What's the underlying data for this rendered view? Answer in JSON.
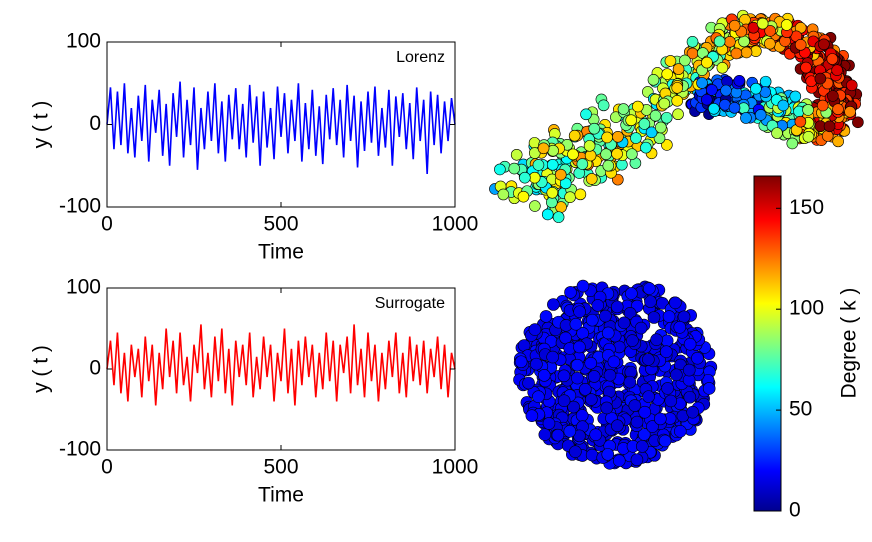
{
  "chart_data": [
    {
      "type": "line",
      "xlabel": "Time",
      "ylabel": "y ( t )",
      "x": [
        0,
        10,
        20,
        30,
        40,
        50,
        60,
        70,
        80,
        90,
        100,
        110,
        120,
        130,
        140,
        150,
        160,
        170,
        180,
        190,
        200,
        210,
        220,
        230,
        240,
        250,
        260,
        270,
        280,
        290,
        300,
        310,
        320,
        330,
        340,
        350,
        360,
        370,
        380,
        390,
        400,
        410,
        420,
        430,
        440,
        450,
        460,
        470,
        480,
        490,
        500,
        510,
        520,
        530,
        540,
        550,
        560,
        570,
        580,
        590,
        600,
        610,
        620,
        630,
        640,
        650,
        660,
        670,
        680,
        690,
        700,
        710,
        720,
        730,
        740,
        750,
        760,
        770,
        780,
        790,
        800,
        810,
        820,
        830,
        840,
        850,
        860,
        870,
        880,
        890,
        900,
        910,
        920,
        930,
        940,
        950,
        960,
        970,
        980,
        990,
        1000
      ],
      "series": [
        {
          "name": "Lorenz",
          "color": "#0000ff",
          "values": [
            0,
            45,
            -30,
            40,
            -25,
            50,
            -35,
            20,
            -40,
            35,
            -20,
            48,
            -45,
            30,
            -10,
            42,
            -38,
            25,
            -50,
            38,
            -15,
            52,
            -40,
            30,
            -25,
            45,
            -55,
            20,
            -30,
            40,
            -20,
            50,
            -35,
            28,
            -45,
            36,
            -18,
            44,
            -30,
            25,
            -40,
            48,
            -22,
            34,
            -50,
            40,
            -28,
            20,
            -42,
            46,
            -15,
            38,
            -35,
            30,
            -20,
            50,
            -45,
            26,
            -30,
            42,
            -38,
            22,
            -48,
            36,
            -18,
            44,
            -25,
            30,
            -40,
            48,
            -20,
            35,
            -52,
            28,
            -32,
            40,
            -22,
            46,
            -38,
            20,
            -28,
            42,
            -50,
            34,
            -15,
            38,
            -30,
            26,
            -42,
            45,
            -20,
            30,
            -60,
            40,
            -25,
            36,
            -35,
            28,
            -20,
            32,
            0
          ]
        }
      ],
      "xlim": [
        0,
        1000
      ],
      "xticks": [
        0,
        500,
        1000
      ],
      "ylim": [
        -100,
        100
      ],
      "yticks": [
        100,
        0,
        -100
      ]
    },
    {
      "type": "line",
      "xlabel": "Time",
      "ylabel": "y ( t )",
      "x": [
        0,
        10,
        20,
        30,
        40,
        50,
        60,
        70,
        80,
        90,
        100,
        110,
        120,
        130,
        140,
        150,
        160,
        170,
        180,
        190,
        200,
        210,
        220,
        230,
        240,
        250,
        260,
        270,
        280,
        290,
        300,
        310,
        320,
        330,
        340,
        350,
        360,
        370,
        380,
        390,
        400,
        410,
        420,
        430,
        440,
        450,
        460,
        470,
        480,
        490,
        500,
        510,
        520,
        530,
        540,
        550,
        560,
        570,
        580,
        590,
        600,
        610,
        620,
        630,
        640,
        650,
        660,
        670,
        680,
        690,
        700,
        710,
        720,
        730,
        740,
        750,
        760,
        770,
        780,
        790,
        800,
        810,
        820,
        830,
        840,
        850,
        860,
        870,
        880,
        890,
        900,
        910,
        920,
        930,
        940,
        950,
        960,
        970,
        980,
        990,
        1000
      ],
      "series": [
        {
          "name": "Surrogate",
          "color": "#ff0000",
          "values": [
            0,
            35,
            -20,
            45,
            -30,
            20,
            -40,
            30,
            -10,
            25,
            -35,
            40,
            -15,
            30,
            -45,
            20,
            -25,
            50,
            -10,
            35,
            -30,
            45,
            -20,
            15,
            -40,
            30,
            -5,
            55,
            -25,
            20,
            -35,
            40,
            -15,
            50,
            -30,
            25,
            -45,
            35,
            -10,
            30,
            -20,
            45,
            -35,
            15,
            -25,
            40,
            -10,
            30,
            -40,
            20,
            -15,
            50,
            -30,
            25,
            -45,
            35,
            -20,
            40,
            -10,
            30,
            -35,
            20,
            -25,
            45,
            -15,
            35,
            -40,
            30,
            -5,
            40,
            -30,
            55,
            -20,
            25,
            -35,
            45,
            -15,
            30,
            -40,
            20,
            -25,
            35,
            -10,
            45,
            -30,
            20,
            -35,
            40,
            -15,
            30,
            -20,
            35,
            -30,
            25,
            -10,
            40,
            -25,
            30,
            -35,
            20,
            0
          ]
        }
      ],
      "xlim": [
        0,
        1000
      ],
      "xticks": [
        0,
        500,
        1000
      ],
      "ylim": [
        -100,
        100
      ],
      "yticks": [
        100,
        0,
        -100
      ]
    }
  ],
  "colorbar": {
    "label": "Degree ( k )",
    "lim": [
      0,
      166
    ],
    "ticks": [
      0,
      50,
      100,
      150
    ]
  }
}
